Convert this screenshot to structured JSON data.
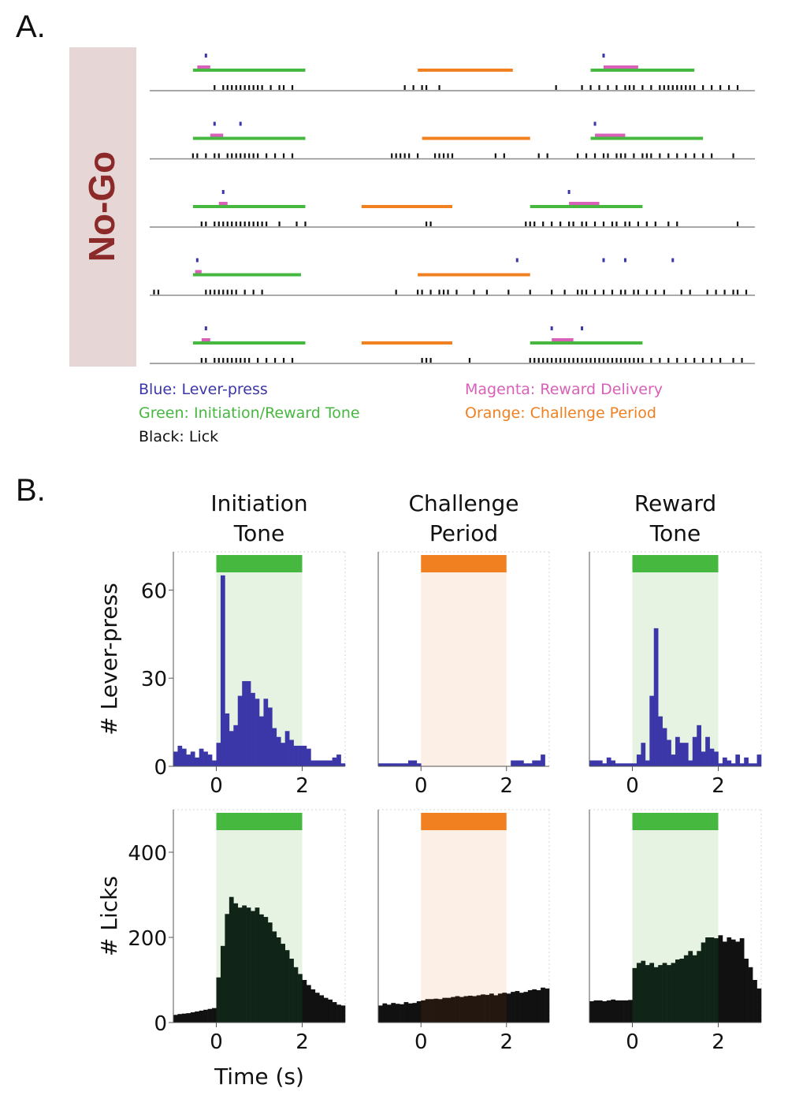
{
  "panel_a": {
    "letter": "A.",
    "condition_label": "No-Go",
    "legend": [
      {
        "text": "Blue: Lever-press",
        "color": "#3b37a8"
      },
      {
        "text": "Magenta: Reward Delivery",
        "color": "#d860b8"
      },
      {
        "text": "Green: Initiation/Reward Tone",
        "color": "#46b840"
      },
      {
        "text": "Orange: Challenge Period",
        "color": "#f08020"
      },
      {
        "text": "Black: Lick",
        "color": "#111111"
      }
    ]
  },
  "panel_b": {
    "letter": "B.",
    "column_titles": [
      [
        "Initiation",
        "Tone"
      ],
      [
        "Challenge",
        "Period"
      ],
      [
        "Reward",
        "Tone"
      ]
    ],
    "row_ylabels": [
      "# Lever-press",
      "# Licks"
    ],
    "xlabel": "Time (s)"
  },
  "colors": {
    "blue": "#3b37a8",
    "magenta": "#d860b8",
    "green": "#46b840",
    "orange": "#f08020",
    "lick": "#111111",
    "green_shade": "#e6f3e3",
    "orange_shade": "#fbefe6",
    "condition_bg": "#e6d6d6",
    "condition_text": "#8c2a2a"
  },
  "chart_data": [
    {
      "type": "raster",
      "panel": "A",
      "time_range": [
        -1,
        13
      ],
      "trials": [
        {
          "green": [
            [
              0,
              2.6
            ],
            [
              9.2,
              11.6
            ]
          ],
          "orange": [
            [
              5.2,
              7.4
            ]
          ],
          "magenta": [
            [
              0.1,
              0.4
            ],
            [
              9.5,
              10.3
            ]
          ],
          "lever": [
            0.3,
            9.5
          ],
          "licks": [
            0.5,
            0.7,
            0.8,
            0.9,
            1.0,
            1.1,
            1.2,
            1.3,
            1.4,
            1.5,
            1.6,
            1.8,
            2.0,
            2.1,
            2.3,
            4.9,
            5.1,
            5.3,
            5.4,
            5.7,
            8.4,
            9.0,
            9.2,
            9.4,
            9.6,
            9.8,
            10.0,
            10.1,
            10.2,
            10.4,
            10.6,
            10.8,
            10.9,
            11.0,
            11.1,
            11.2,
            11.3,
            11.4,
            11.5,
            11.6,
            11.8,
            12.0,
            12.2,
            12.4,
            12.6
          ]
        },
        {
          "green": [
            [
              0,
              2.6
            ],
            [
              9.2,
              11.8
            ]
          ],
          "orange": [
            [
              5.3,
              7.8
            ]
          ],
          "magenta": [
            [
              0.4,
              0.7
            ],
            [
              9.3,
              10.0
            ]
          ],
          "lever": [
            0.5,
            1.1,
            9.3
          ],
          "licks": [
            0,
            0.1,
            0.3,
            0.5,
            0.6,
            0.8,
            0.9,
            1.0,
            1.1,
            1.2,
            1.3,
            1.4,
            1.5,
            1.7,
            1.9,
            2.1,
            2.3,
            4.6,
            4.7,
            4.8,
            4.9,
            5.0,
            5.2,
            5.6,
            5.7,
            5.8,
            5.9,
            6.0,
            7.0,
            7.2,
            8.0,
            8.2,
            8.9,
            9.1,
            9.3,
            9.5,
            9.6,
            9.8,
            9.9,
            10.0,
            10.2,
            10.4,
            10.5,
            10.6,
            10.8,
            11.0,
            11.2,
            11.4,
            11.6,
            11.8,
            12.0,
            12.5
          ]
        },
        {
          "green": [
            [
              0,
              2.6
            ],
            [
              7.8,
              10.4
            ]
          ],
          "orange": [
            [
              3.9,
              6.0
            ]
          ],
          "magenta": [
            [
              0.6,
              0.8
            ],
            [
              8.7,
              9.4
            ]
          ],
          "lever": [
            0.7,
            8.7
          ],
          "licks": [
            0.2,
            0.3,
            0.5,
            0.6,
            0.7,
            0.8,
            0.9,
            1.0,
            1.1,
            1.2,
            1.3,
            1.4,
            1.5,
            1.6,
            1.7,
            2.0,
            2.4,
            2.6,
            5.4,
            5.5,
            7.7,
            7.8,
            7.9,
            8.1,
            8.3,
            8.5,
            8.7,
            8.8,
            9.0,
            9.1,
            9.3,
            9.5,
            9.7,
            9.8,
            10.0,
            10.1,
            10.3,
            10.5,
            10.7,
            11.0,
            11.2,
            12.6
          ]
        },
        {
          "green": [
            [
              0,
              2.5
            ]
          ],
          "orange": [
            [
              5.2,
              7.8
            ]
          ],
          "magenta": [
            [
              0.05,
              0.2
            ]
          ],
          "lever": [
            0.1,
            7.5,
            9.5,
            10.0,
            11.1
          ],
          "licks": [
            -0.9,
            -0.8,
            0.3,
            0.4,
            0.5,
            0.6,
            0.7,
            0.8,
            0.9,
            1.0,
            1.2,
            1.4,
            1.6,
            4.7,
            5.2,
            5.3,
            5.5,
            5.7,
            5.8,
            5.9,
            6.1,
            6.5,
            6.8,
            7.3,
            7.8,
            8.3,
            8.6,
            8.9,
            9.0,
            9.1,
            9.3,
            9.5,
            9.7,
            9.9,
            10.0,
            10.2,
            10.3,
            10.5,
            10.7,
            10.9,
            11.3,
            11.5,
            11.9,
            12.1,
            12.3,
            12.5,
            12.6,
            12.8
          ]
        },
        {
          "green": [
            [
              0,
              2.6
            ],
            [
              7.8,
              10.4
            ]
          ],
          "orange": [
            [
              3.9,
              6.0
            ]
          ],
          "magenta": [
            [
              0.2,
              0.4
            ],
            [
              8.3,
              8.8
            ]
          ],
          "lever": [
            0.3,
            8.3,
            9.0
          ],
          "licks": [
            0.2,
            0.3,
            0.5,
            0.6,
            0.7,
            0.8,
            0.9,
            1.0,
            1.1,
            1.2,
            1.3,
            1.5,
            1.7,
            1.9,
            2.1,
            2.3,
            5.3,
            5.4,
            5.5,
            6.4,
            7.8,
            7.9,
            8.0,
            8.1,
            8.2,
            8.3,
            8.4,
            8.5,
            8.6,
            8.7,
            8.8,
            8.9,
            9.0,
            9.1,
            9.2,
            9.3,
            9.4,
            9.5,
            9.6,
            9.7,
            9.8,
            9.9,
            10.0,
            10.1,
            10.2,
            10.3,
            10.4,
            10.6,
            10.8,
            11.0,
            11.2,
            11.4,
            11.6,
            11.8,
            12.0,
            12.2,
            12.5,
            12.7
          ]
        }
      ]
    },
    {
      "type": "bar",
      "panel": "B",
      "title": "Initiation Tone",
      "ylabel": "# Lever-press",
      "x_range": [
        -1,
        3
      ],
      "ylim": [
        0,
        73
      ],
      "yticks": [
        0,
        30,
        60
      ],
      "xticks": [
        0,
        2
      ],
      "bin_width": 0.1,
      "event": [
        0,
        2
      ],
      "values": [
        5,
        7,
        6,
        4,
        5,
        3,
        6,
        5,
        4,
        2,
        8,
        65,
        18,
        12,
        14,
        24,
        29,
        29,
        25,
        23,
        17,
        23,
        20,
        13,
        10,
        8,
        12,
        9,
        7,
        7,
        7,
        6,
        2,
        2,
        2,
        2,
        2,
        3,
        4,
        1
      ]
    },
    {
      "type": "bar",
      "panel": "B",
      "title": "Challenge Period",
      "x_range": [
        -1,
        3
      ],
      "ylim": [
        0,
        73
      ],
      "xticks": [
        0,
        2
      ],
      "bin_width": 0.1,
      "event": [
        0,
        2
      ],
      "values": [
        1,
        1,
        1,
        1,
        1,
        1,
        1,
        2,
        2,
        1,
        0,
        0,
        0,
        0,
        0,
        0,
        0,
        0,
        0,
        0,
        0,
        0,
        0,
        0,
        0,
        0,
        0,
        0,
        0,
        0,
        0,
        2,
        2,
        2,
        1,
        1,
        2,
        2,
        4,
        0
      ]
    },
    {
      "type": "bar",
      "panel": "B",
      "title": "Reward Tone",
      "x_range": [
        -1,
        3
      ],
      "ylim": [
        0,
        73
      ],
      "xticks": [
        0,
        2
      ],
      "bin_width": 0.1,
      "event": [
        0,
        2
      ],
      "values": [
        2,
        2,
        2,
        1,
        3,
        2,
        1,
        1,
        1,
        1,
        1,
        4,
        8,
        2,
        24,
        47,
        17,
        13,
        9,
        4,
        10,
        8,
        8,
        2,
        10,
        14,
        5,
        10,
        6,
        5,
        1,
        3,
        2,
        1,
        4,
        1,
        3,
        1,
        1,
        4
      ]
    },
    {
      "type": "bar",
      "panel": "B",
      "ylabel": "# Licks",
      "xlabel": "Time (s)",
      "x_range": [
        -1,
        3
      ],
      "ylim": [
        0,
        500
      ],
      "yticks": [
        0,
        200,
        400
      ],
      "xticks": [
        0,
        2
      ],
      "bin_width": 0.1,
      "event": [
        0,
        2
      ],
      "values": [
        18,
        20,
        21,
        22,
        24,
        26,
        28,
        30,
        32,
        34,
        106,
        180,
        255,
        295,
        280,
        270,
        275,
        270,
        262,
        270,
        254,
        248,
        235,
        214,
        200,
        185,
        170,
        150,
        130,
        114,
        100,
        88,
        78,
        70,
        64,
        58,
        54,
        48,
        42,
        40
      ]
    },
    {
      "type": "bar",
      "panel": "B",
      "x_range": [
        -1,
        3
      ],
      "ylim": [
        0,
        500
      ],
      "xticks": [
        0,
        2
      ],
      "bin_width": 0.1,
      "event": [
        0,
        2
      ],
      "values": [
        40,
        45,
        42,
        46,
        44,
        43,
        48,
        45,
        46,
        50,
        52,
        55,
        55,
        56,
        55,
        58,
        58,
        60,
        62,
        60,
        62,
        63,
        62,
        64,
        66,
        65,
        68,
        64,
        68,
        70,
        68,
        72,
        74,
        70,
        72,
        76,
        78,
        76,
        82,
        80
      ]
    },
    {
      "type": "bar",
      "panel": "B",
      "x_range": [
        -1,
        3
      ],
      "ylim": [
        0,
        500
      ],
      "xticks": [
        0,
        2
      ],
      "bin_width": 0.1,
      "event": [
        0,
        2
      ],
      "values": [
        50,
        52,
        52,
        50,
        52,
        54,
        52,
        52,
        52,
        53,
        128,
        140,
        145,
        135,
        140,
        130,
        135,
        140,
        135,
        140,
        148,
        150,
        158,
        168,
        158,
        168,
        188,
        200,
        200,
        198,
        205,
        190,
        200,
        195,
        190,
        198,
        150,
        130,
        100,
        80
      ]
    }
  ]
}
